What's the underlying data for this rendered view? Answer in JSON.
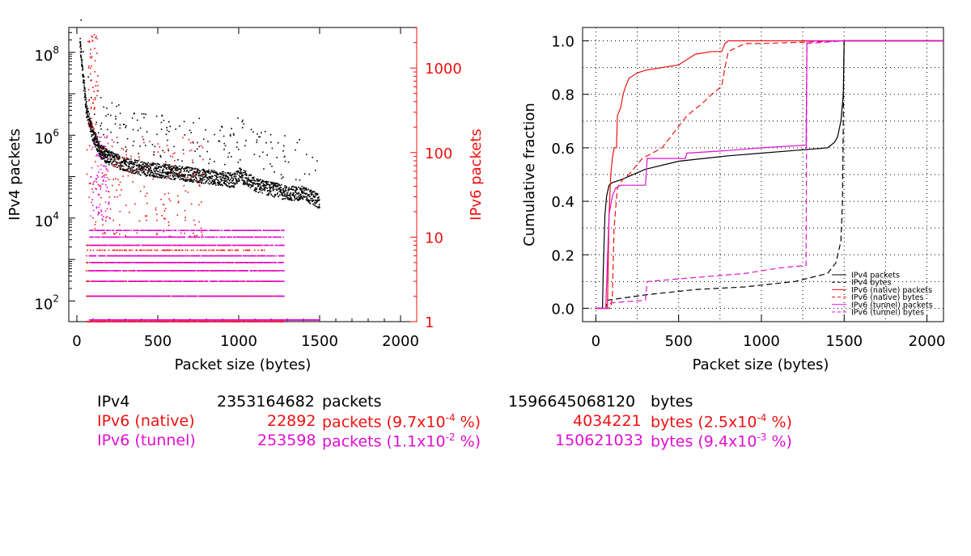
{
  "colors": {
    "ipv4": "#000000",
    "native": "#ee1111",
    "tunnel": "#e010d0",
    "grid": "#000000"
  },
  "chart_data": [
    {
      "type": "scatter",
      "xlabel": "Packet size (bytes)",
      "ylabel": "IPv4 packets",
      "y2label": "IPv6 packets",
      "xlim": [
        -50,
        2100
      ],
      "xticks": [
        0,
        500,
        1000,
        1500,
        2000
      ],
      "ylim_log": [
        1.5,
        8.6
      ],
      "y_ticks": [
        {
          "exp": 2,
          "label": "10",
          "sup": "2"
        },
        {
          "exp": 4,
          "label": "10",
          "sup": "4"
        },
        {
          "exp": 6,
          "label": "10",
          "sup": "6"
        },
        {
          "exp": 8,
          "label": "10",
          "sup": "8"
        }
      ],
      "y2lim_log": [
        0,
        3.48
      ],
      "y2_ticks": [
        {
          "exp": 0,
          "label": "1"
        },
        {
          "exp": 1,
          "label": "10"
        },
        {
          "exp": 2,
          "label": "100"
        },
        {
          "exp": 3,
          "label": "1000"
        }
      ],
      "series": [
        {
          "name": "IPv4",
          "approx_trend": [
            [
              20,
              8.2
            ],
            [
              40,
              7.4
            ],
            [
              60,
              6.6
            ],
            [
              100,
              6.0
            ],
            [
              150,
              5.6
            ],
            [
              200,
              5.45
            ],
            [
              300,
              5.3
            ],
            [
              400,
              5.2
            ],
            [
              500,
              5.15
            ],
            [
              600,
              5.1
            ],
            [
              700,
              5.05
            ],
            [
              800,
              5.0
            ],
            [
              900,
              4.95
            ],
            [
              970,
              4.9
            ],
            [
              1000,
              5.05
            ],
            [
              1050,
              4.95
            ],
            [
              1100,
              4.8
            ],
            [
              1200,
              4.7
            ],
            [
              1300,
              4.6
            ],
            [
              1400,
              4.6
            ],
            [
              1500,
              4.4
            ]
          ]
        },
        {
          "name": "IPv6 (native)",
          "approx_levels": [
            1,
            2,
            3,
            4,
            5,
            6,
            7,
            8,
            10,
            20,
            40,
            100,
            1000
          ]
        },
        {
          "name": "IPv6 (tunnel)",
          "approx_levels": [
            2,
            3,
            4,
            5,
            6,
            7,
            8,
            10,
            20,
            40
          ]
        }
      ]
    },
    {
      "type": "line",
      "xlabel": "Packet size (bytes)",
      "ylabel": "Cumulative fraction",
      "xlim": [
        -80,
        2100
      ],
      "ylim": [
        -0.05,
        1.05
      ],
      "xticks": [
        0,
        500,
        1000,
        1500,
        2000
      ],
      "yticks": [
        {
          "v": 0.0,
          "label": "0.0"
        },
        {
          "v": 0.2,
          "label": "0.2"
        },
        {
          "v": 0.4,
          "label": "0.4"
        },
        {
          "v": 0.6,
          "label": "0.6"
        },
        {
          "v": 0.8,
          "label": "0.8"
        },
        {
          "v": 1.0,
          "label": "1.0"
        }
      ],
      "grid": true,
      "legend": "bottom-right",
      "series": [
        {
          "name": "IPv4 packets",
          "color": "#000000",
          "dash": false,
          "points": [
            [
              0,
              0
            ],
            [
              40,
              0
            ],
            [
              45,
              0.15
            ],
            [
              55,
              0.35
            ],
            [
              65,
              0.42
            ],
            [
              80,
              0.46
            ],
            [
              100,
              0.47
            ],
            [
              150,
              0.48
            ],
            [
              300,
              0.52
            ],
            [
              500,
              0.55
            ],
            [
              800,
              0.57
            ],
            [
              1000,
              0.58
            ],
            [
              1200,
              0.59
            ],
            [
              1400,
              0.6
            ],
            [
              1440,
              0.62
            ],
            [
              1460,
              0.64
            ],
            [
              1480,
              0.7
            ],
            [
              1495,
              0.8
            ],
            [
              1500,
              1.0
            ],
            [
              2100,
              1.0
            ]
          ]
        },
        {
          "name": "IPv4 bytes",
          "color": "#000000",
          "dash": true,
          "points": [
            [
              0,
              0
            ],
            [
              60,
              0
            ],
            [
              70,
              0.03
            ],
            [
              300,
              0.05
            ],
            [
              600,
              0.07
            ],
            [
              900,
              0.08
            ],
            [
              1200,
              0.1
            ],
            [
              1400,
              0.13
            ],
            [
              1450,
              0.17
            ],
            [
              1480,
              0.25
            ],
            [
              1490,
              0.4
            ],
            [
              1500,
              1.0
            ],
            [
              2100,
              1.0
            ]
          ]
        },
        {
          "name": "IPv6 (native) packets",
          "color": "#ee1111",
          "dash": false,
          "points": [
            [
              0,
              0
            ],
            [
              70,
              0
            ],
            [
              80,
              0.35
            ],
            [
              90,
              0.5
            ],
            [
              100,
              0.56
            ],
            [
              110,
              0.6
            ],
            [
              125,
              0.6
            ],
            [
              130,
              0.72
            ],
            [
              150,
              0.75
            ],
            [
              165,
              0.8
            ],
            [
              180,
              0.83
            ],
            [
              200,
              0.86
            ],
            [
              250,
              0.88
            ],
            [
              300,
              0.89
            ],
            [
              400,
              0.9
            ],
            [
              500,
              0.91
            ],
            [
              550,
              0.93
            ],
            [
              600,
              0.95
            ],
            [
              700,
              0.96
            ],
            [
              760,
              0.96
            ],
            [
              780,
              0.99
            ],
            [
              800,
              1.0
            ],
            [
              2100,
              1.0
            ]
          ]
        },
        {
          "name": "IPv6 (native) bytes",
          "color": "#ee1111",
          "dash": true,
          "points": [
            [
              0,
              0
            ],
            [
              90,
              0
            ],
            [
              100,
              0.05
            ],
            [
              110,
              0.3
            ],
            [
              130,
              0.45
            ],
            [
              160,
              0.48
            ],
            [
              200,
              0.5
            ],
            [
              280,
              0.56
            ],
            [
              400,
              0.6
            ],
            [
              500,
              0.68
            ],
            [
              550,
              0.72
            ],
            [
              650,
              0.77
            ],
            [
              700,
              0.8
            ],
            [
              760,
              0.83
            ],
            [
              780,
              0.9
            ],
            [
              800,
              0.96
            ],
            [
              900,
              0.99
            ],
            [
              1000,
              0.99
            ],
            [
              1500,
              1.0
            ],
            [
              2100,
              1.0
            ]
          ]
        },
        {
          "name": "IPv6 (tunnel) packets",
          "color": "#e010d0",
          "dash": false,
          "points": [
            [
              0,
              0
            ],
            [
              60,
              0
            ],
            [
              80,
              0.35
            ],
            [
              100,
              0.42
            ],
            [
              120,
              0.45
            ],
            [
              150,
              0.46
            ],
            [
              300,
              0.46
            ],
            [
              310,
              0.56
            ],
            [
              540,
              0.56
            ],
            [
              550,
              0.58
            ],
            [
              800,
              0.59
            ],
            [
              1000,
              0.6
            ],
            [
              1270,
              0.61
            ],
            [
              1275,
              1.0
            ],
            [
              2100,
              1.0
            ]
          ]
        },
        {
          "name": "IPv6 (tunnel) bytes",
          "color": "#e010d0",
          "dash": true,
          "points": [
            [
              0,
              0
            ],
            [
              80,
              0
            ],
            [
              90,
              0.02
            ],
            [
              300,
              0.03
            ],
            [
              310,
              0.1
            ],
            [
              500,
              0.11
            ],
            [
              700,
              0.12
            ],
            [
              900,
              0.13
            ],
            [
              1100,
              0.15
            ],
            [
              1270,
              0.16
            ],
            [
              1275,
              0.99
            ],
            [
              1500,
              1.0
            ],
            [
              2100,
              1.0
            ]
          ]
        }
      ]
    }
  ],
  "summary": [
    {
      "proto": "IPv4",
      "count": "2353164682",
      "pkt_unit": "packets",
      "pkt_pct": "",
      "pkt_exp": "",
      "bytes": "1596645068120",
      "bytes_unit": "bytes",
      "bytes_pct": "",
      "bytes_exp": ""
    },
    {
      "proto": "IPv6 (native)",
      "count": "22892",
      "pkt_unit": "packets (9.7x10",
      "pkt_exp": "-4",
      "pkt_pct": " %)",
      "bytes": "4034221",
      "bytes_unit": "bytes (2.5x10",
      "bytes_exp": "-4",
      "bytes_pct": " %)"
    },
    {
      "proto": "IPv6 (tunnel)",
      "count": "253598",
      "pkt_unit": "packets (1.1x10",
      "pkt_exp": "-2",
      "pkt_pct": " %)",
      "bytes": "150621033",
      "bytes_unit": "bytes (9.4x10",
      "bytes_exp": "-3",
      "bytes_pct": " %)"
    }
  ]
}
